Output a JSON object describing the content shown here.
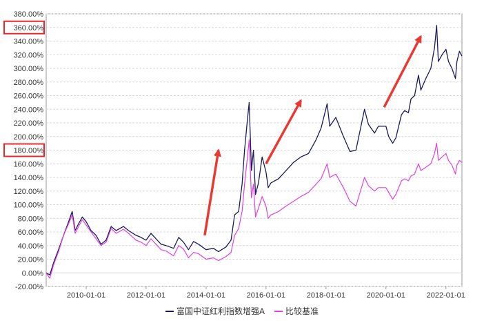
{
  "chart_data": {
    "type": "line",
    "title": "",
    "xlabel": "",
    "ylabel": "",
    "x_start": "2008-09-01",
    "x_end": "2022-07-15",
    "x_ticks": [
      "2010-01-01",
      "2012-01-01",
      "2014-01-01",
      "2016-01-01",
      "2018-01-01",
      "2020-01-01",
      "2022-01-01"
    ],
    "ylim": [
      -20,
      380
    ],
    "y_ticks": [
      -20,
      0,
      20,
      40,
      60,
      80,
      100,
      120,
      140,
      160,
      180,
      200,
      220,
      240,
      260,
      280,
      300,
      320,
      340,
      360,
      380
    ],
    "y_tick_labels": [
      "-20.00%",
      "0.00%",
      "20.00%",
      "40.00%",
      "60.00%",
      "80.00%",
      "100.00%",
      "120.00%",
      "140.00%",
      "160.00%",
      "180.00%",
      "200.00%",
      "220.00%",
      "240.00%",
      "260.00%",
      "280.00%",
      "300.00%",
      "320.00%",
      "340.00%",
      "360.00%",
      "380.00%"
    ],
    "highlighted_ticks": [
      "360.00%",
      "180.00%"
    ],
    "grid": true,
    "legend_position": "bottom",
    "series": [
      {
        "name": "富国中证红利指数增强A",
        "color": "#1a1a5e",
        "points": [
          [
            "2008-09-01",
            0
          ],
          [
            "2008-10-15",
            -3
          ],
          [
            "2008-12-01",
            15
          ],
          [
            "2009-02-01",
            35
          ],
          [
            "2009-04-01",
            55
          ],
          [
            "2009-06-01",
            75
          ],
          [
            "2009-07-15",
            90
          ],
          [
            "2009-08-20",
            62
          ],
          [
            "2009-10-01",
            72
          ],
          [
            "2009-11-15",
            82
          ],
          [
            "2010-01-01",
            75
          ],
          [
            "2010-03-01",
            62
          ],
          [
            "2010-05-01",
            55
          ],
          [
            "2010-07-01",
            42
          ],
          [
            "2010-09-01",
            48
          ],
          [
            "2010-11-01",
            68
          ],
          [
            "2011-01-01",
            62
          ],
          [
            "2011-04-01",
            68
          ],
          [
            "2011-06-01",
            62
          ],
          [
            "2011-09-01",
            55
          ],
          [
            "2011-11-01",
            52
          ],
          [
            "2012-01-01",
            48
          ],
          [
            "2012-03-01",
            58
          ],
          [
            "2012-05-01",
            50
          ],
          [
            "2012-07-01",
            42
          ],
          [
            "2012-09-01",
            40
          ],
          [
            "2012-12-01",
            36
          ],
          [
            "2013-02-01",
            52
          ],
          [
            "2013-04-01",
            45
          ],
          [
            "2013-06-01",
            34
          ],
          [
            "2013-08-01",
            46
          ],
          [
            "2013-10-01",
            42
          ],
          [
            "2014-01-01",
            34
          ],
          [
            "2014-04-01",
            36
          ],
          [
            "2014-06-01",
            31
          ],
          [
            "2014-09-01",
            38
          ],
          [
            "2014-11-01",
            48
          ],
          [
            "2014-12-15",
            85
          ],
          [
            "2015-02-01",
            90
          ],
          [
            "2015-03-15",
            130
          ],
          [
            "2015-04-15",
            180
          ],
          [
            "2015-05-20",
            225
          ],
          [
            "2015-06-10",
            250
          ],
          [
            "2015-07-08",
            150
          ],
          [
            "2015-08-01",
            180
          ],
          [
            "2015-08-26",
            115
          ],
          [
            "2015-10-01",
            132
          ],
          [
            "2015-11-15",
            170
          ],
          [
            "2016-01-01",
            148
          ],
          [
            "2016-01-28",
            125
          ],
          [
            "2016-03-01",
            132
          ],
          [
            "2016-06-01",
            138
          ],
          [
            "2016-09-01",
            150
          ],
          [
            "2016-12-01",
            162
          ],
          [
            "2017-03-01",
            170
          ],
          [
            "2017-06-01",
            175
          ],
          [
            "2017-09-01",
            195
          ],
          [
            "2017-11-01",
            212
          ],
          [
            "2018-01-15",
            248
          ],
          [
            "2018-02-15",
            215
          ],
          [
            "2018-05-01",
            228
          ],
          [
            "2018-08-01",
            200
          ],
          [
            "2018-10-20",
            178
          ],
          [
            "2019-01-01",
            180
          ],
          [
            "2019-04-15",
            240
          ],
          [
            "2019-06-01",
            218
          ],
          [
            "2019-08-15",
            205
          ],
          [
            "2019-10-01",
            215
          ],
          [
            "2020-01-01",
            215
          ],
          [
            "2020-02-03",
            200
          ],
          [
            "2020-03-23",
            190
          ],
          [
            "2020-05-01",
            198
          ],
          [
            "2020-07-08",
            232
          ],
          [
            "2020-08-15",
            238
          ],
          [
            "2020-10-01",
            235
          ],
          [
            "2020-11-01",
            255
          ],
          [
            "2020-12-15",
            260
          ],
          [
            "2021-02-01",
            290
          ],
          [
            "2021-03-01",
            268
          ],
          [
            "2021-05-01",
            285
          ],
          [
            "2021-07-01",
            300
          ],
          [
            "2021-08-15",
            330
          ],
          [
            "2021-09-10",
            363
          ],
          [
            "2021-10-01",
            310
          ],
          [
            "2021-11-15",
            320
          ],
          [
            "2022-01-01",
            328
          ],
          [
            "2022-02-01",
            310
          ],
          [
            "2022-03-15",
            300
          ],
          [
            "2022-04-27",
            285
          ],
          [
            "2022-05-15",
            310
          ],
          [
            "2022-06-15",
            325
          ],
          [
            "2022-07-15",
            318
          ]
        ]
      },
      {
        "name": "比较基准",
        "color": "#e040e0",
        "points": [
          [
            "2008-09-01",
            0
          ],
          [
            "2008-10-15",
            -8
          ],
          [
            "2008-12-01",
            12
          ],
          [
            "2009-02-01",
            32
          ],
          [
            "2009-04-01",
            55
          ],
          [
            "2009-06-01",
            72
          ],
          [
            "2009-07-15",
            85
          ],
          [
            "2009-08-20",
            58
          ],
          [
            "2009-10-01",
            68
          ],
          [
            "2009-11-15",
            78
          ],
          [
            "2010-01-01",
            70
          ],
          [
            "2010-03-01",
            60
          ],
          [
            "2010-05-01",
            50
          ],
          [
            "2010-07-01",
            40
          ],
          [
            "2010-09-01",
            45
          ],
          [
            "2010-11-01",
            65
          ],
          [
            "2011-01-01",
            58
          ],
          [
            "2011-04-01",
            64
          ],
          [
            "2011-06-01",
            58
          ],
          [
            "2011-09-01",
            48
          ],
          [
            "2011-11-01",
            45
          ],
          [
            "2012-01-01",
            40
          ],
          [
            "2012-03-01",
            50
          ],
          [
            "2012-05-01",
            42
          ],
          [
            "2012-07-01",
            34
          ],
          [
            "2012-09-01",
            32
          ],
          [
            "2012-12-01",
            25
          ],
          [
            "2013-02-01",
            40
          ],
          [
            "2013-04-01",
            35
          ],
          [
            "2013-06-01",
            22
          ],
          [
            "2013-08-01",
            30
          ],
          [
            "2013-10-01",
            28
          ],
          [
            "2014-01-01",
            20
          ],
          [
            "2014-04-01",
            22
          ],
          [
            "2014-06-01",
            18
          ],
          [
            "2014-09-01",
            24
          ],
          [
            "2014-11-01",
            30
          ],
          [
            "2014-12-15",
            55
          ],
          [
            "2015-02-01",
            65
          ],
          [
            "2015-03-15",
            90
          ],
          [
            "2015-04-15",
            130
          ],
          [
            "2015-05-20",
            170
          ],
          [
            "2015-06-10",
            195
          ],
          [
            "2015-07-08",
            110
          ],
          [
            "2015-08-01",
            130
          ],
          [
            "2015-08-26",
            82
          ],
          [
            "2015-10-01",
            95
          ],
          [
            "2015-11-15",
            112
          ],
          [
            "2016-01-01",
            98
          ],
          [
            "2016-01-28",
            80
          ],
          [
            "2016-03-01",
            85
          ],
          [
            "2016-06-01",
            90
          ],
          [
            "2016-09-01",
            98
          ],
          [
            "2016-12-01",
            105
          ],
          [
            "2017-03-01",
            112
          ],
          [
            "2017-06-01",
            118
          ],
          [
            "2017-09-01",
            130
          ],
          [
            "2017-11-01",
            138
          ],
          [
            "2018-01-15",
            160
          ],
          [
            "2018-02-15",
            140
          ],
          [
            "2018-05-01",
            145
          ],
          [
            "2018-08-01",
            125
          ],
          [
            "2018-10-20",
            105
          ],
          [
            "2019-01-01",
            98
          ],
          [
            "2019-04-15",
            140
          ],
          [
            "2019-06-01",
            128
          ],
          [
            "2019-08-15",
            120
          ],
          [
            "2019-10-01",
            125
          ],
          [
            "2020-01-01",
            125
          ],
          [
            "2020-02-03",
            118
          ],
          [
            "2020-03-23",
            108
          ],
          [
            "2020-05-01",
            115
          ],
          [
            "2020-07-08",
            135
          ],
          [
            "2020-08-15",
            138
          ],
          [
            "2020-10-01",
            135
          ],
          [
            "2020-11-01",
            142
          ],
          [
            "2020-12-15",
            145
          ],
          [
            "2021-02-01",
            160
          ],
          [
            "2021-03-01",
            150
          ],
          [
            "2021-05-01",
            155
          ],
          [
            "2021-07-01",
            160
          ],
          [
            "2021-08-15",
            175
          ],
          [
            "2021-09-10",
            190
          ],
          [
            "2021-10-01",
            165
          ],
          [
            "2021-11-15",
            170
          ],
          [
            "2022-01-01",
            175
          ],
          [
            "2022-02-01",
            165
          ],
          [
            "2022-03-15",
            158
          ],
          [
            "2022-04-27",
            145
          ],
          [
            "2022-05-15",
            158
          ],
          [
            "2022-06-15",
            165
          ],
          [
            "2022-07-15",
            162
          ]
        ]
      }
    ],
    "annotations": [
      {
        "type": "arrow",
        "color": "#e83a32",
        "from": [
          "2013-12-15",
          55
        ],
        "to": [
          "2014-06-01",
          180
        ]
      },
      {
        "type": "arrow",
        "color": "#e83a32",
        "from": [
          "2016-01-01",
          160
        ],
        "to": [
          "2017-03-01",
          253
        ]
      },
      {
        "type": "arrow",
        "color": "#e83a32",
        "from": [
          "2019-12-10",
          243
        ],
        "to": [
          "2021-03-01",
          347
        ]
      }
    ]
  }
}
